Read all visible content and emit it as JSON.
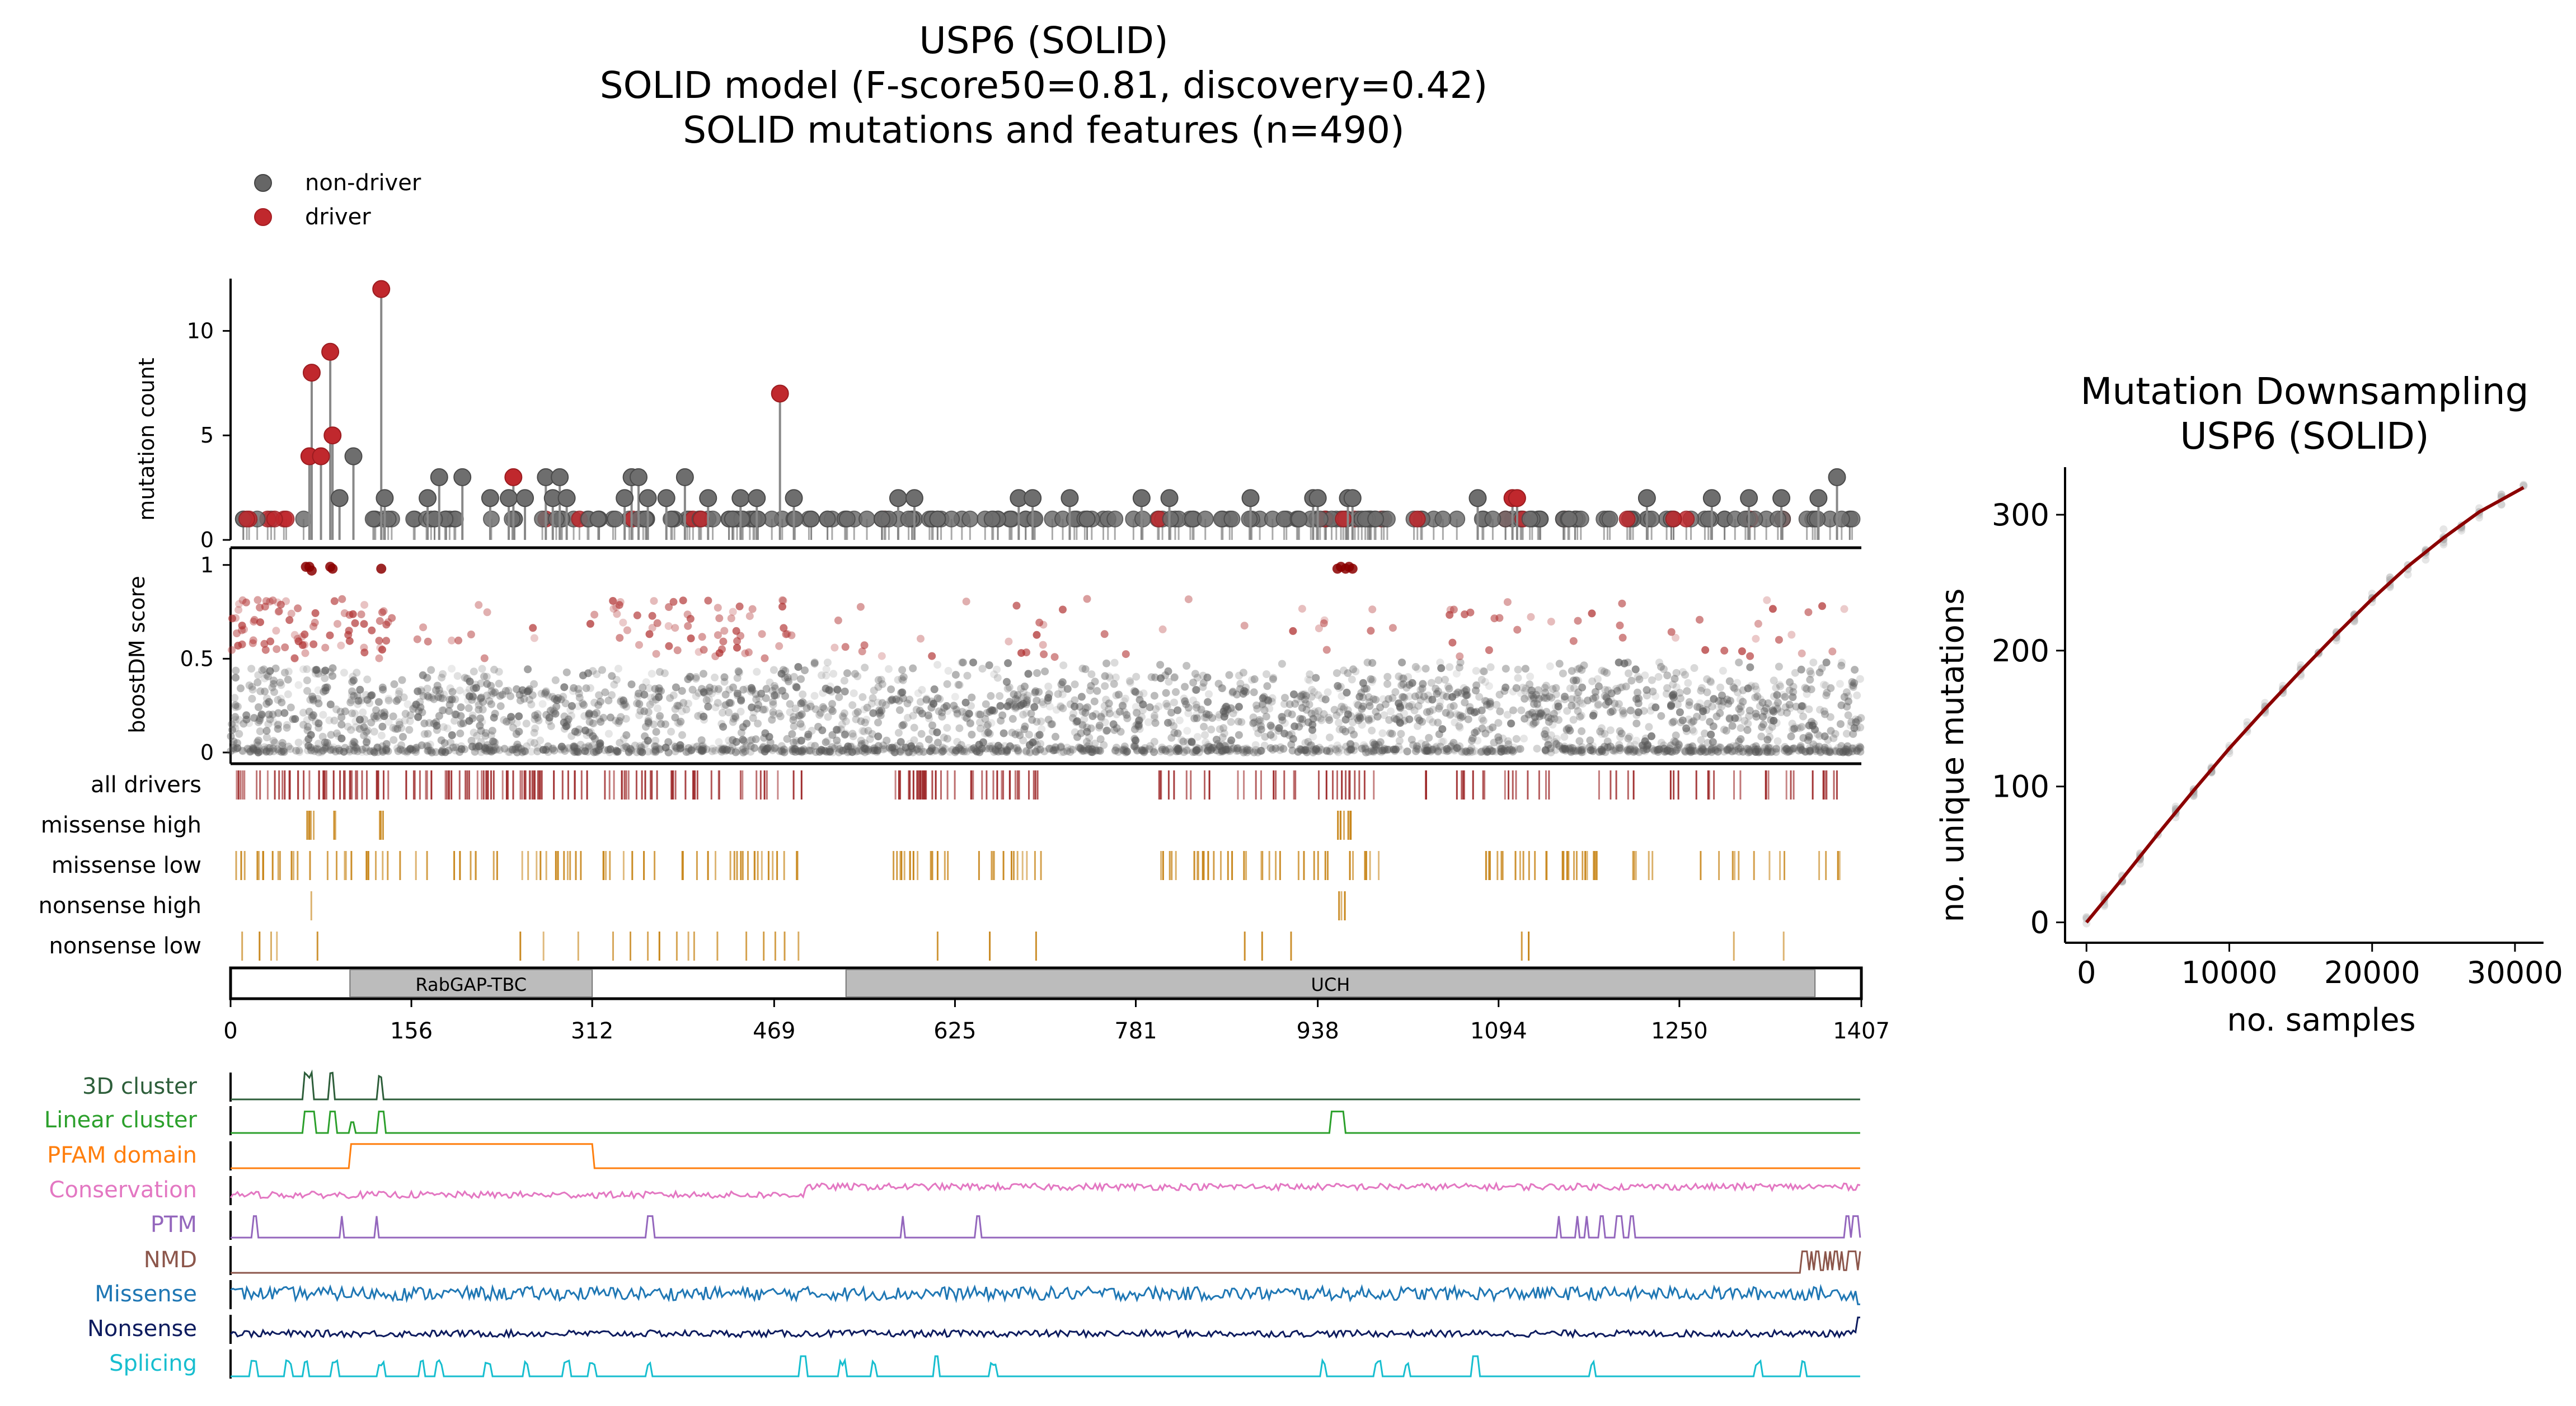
{
  "title_lines": [
    "USP6 (SOLID)",
    "SOLID model (F-score50=0.81, discovery=0.42)",
    "SOLID mutations and features (n=490)"
  ],
  "legend": [
    {
      "label": "non-driver",
      "color": "#666666"
    },
    {
      "label": "driver",
      "color": "#c0282d"
    }
  ],
  "chart_data": [
    {
      "type": "scatter",
      "name": "needle-plot",
      "ylabel": "mutation count",
      "xlim": [
        0,
        1407
      ],
      "ylim": [
        0,
        12.5
      ],
      "yticks": [
        0,
        5,
        10
      ],
      "tall_needles": [
        {
          "x": 68,
          "y": 4,
          "class": "driver"
        },
        {
          "x": 70,
          "y": 8,
          "class": "driver"
        },
        {
          "x": 78,
          "y": 4,
          "class": "driver"
        },
        {
          "x": 86,
          "y": 9,
          "class": "driver"
        },
        {
          "x": 88,
          "y": 5,
          "class": "driver"
        },
        {
          "x": 94,
          "y": 2,
          "class": "non-driver"
        },
        {
          "x": 106,
          "y": 4,
          "class": "non-driver"
        },
        {
          "x": 130,
          "y": 12,
          "class": "driver"
        },
        {
          "x": 133,
          "y": 2,
          "class": "non-driver"
        },
        {
          "x": 170,
          "y": 2,
          "class": "non-driver"
        },
        {
          "x": 180,
          "y": 3,
          "class": "non-driver"
        },
        {
          "x": 200,
          "y": 3,
          "class": "non-driver"
        },
        {
          "x": 224,
          "y": 2,
          "class": "non-driver"
        },
        {
          "x": 240,
          "y": 2,
          "class": "non-driver"
        },
        {
          "x": 244,
          "y": 3,
          "class": "driver"
        },
        {
          "x": 254,
          "y": 2,
          "class": "non-driver"
        },
        {
          "x": 272,
          "y": 3,
          "class": "non-driver"
        },
        {
          "x": 278,
          "y": 2,
          "class": "non-driver"
        },
        {
          "x": 284,
          "y": 3,
          "class": "non-driver"
        },
        {
          "x": 290,
          "y": 2,
          "class": "non-driver"
        },
        {
          "x": 340,
          "y": 2,
          "class": "non-driver"
        },
        {
          "x": 346,
          "y": 3,
          "class": "non-driver"
        },
        {
          "x": 352,
          "y": 3,
          "class": "non-driver"
        },
        {
          "x": 360,
          "y": 2,
          "class": "non-driver"
        },
        {
          "x": 376,
          "y": 2,
          "class": "non-driver"
        },
        {
          "x": 392,
          "y": 3,
          "class": "non-driver"
        },
        {
          "x": 412,
          "y": 2,
          "class": "non-driver"
        },
        {
          "x": 440,
          "y": 2,
          "class": "non-driver"
        },
        {
          "x": 454,
          "y": 2,
          "class": "non-driver"
        },
        {
          "x": 474,
          "y": 7,
          "class": "driver"
        },
        {
          "x": 486,
          "y": 2,
          "class": "non-driver"
        },
        {
          "x": 576,
          "y": 2,
          "class": "non-driver"
        },
        {
          "x": 590,
          "y": 2,
          "class": "non-driver"
        },
        {
          "x": 680,
          "y": 2,
          "class": "non-driver"
        },
        {
          "x": 692,
          "y": 2,
          "class": "non-driver"
        },
        {
          "x": 724,
          "y": 2,
          "class": "non-driver"
        },
        {
          "x": 786,
          "y": 2,
          "class": "non-driver"
        },
        {
          "x": 810,
          "y": 2,
          "class": "non-driver"
        },
        {
          "x": 880,
          "y": 2,
          "class": "non-driver"
        },
        {
          "x": 934,
          "y": 2,
          "class": "non-driver"
        },
        {
          "x": 938,
          "y": 2,
          "class": "non-driver"
        },
        {
          "x": 964,
          "y": 2,
          "class": "non-driver"
        },
        {
          "x": 968,
          "y": 2,
          "class": "non-driver"
        },
        {
          "x": 1076,
          "y": 2,
          "class": "non-driver"
        },
        {
          "x": 1106,
          "y": 2,
          "class": "driver"
        },
        {
          "x": 1110,
          "y": 2,
          "class": "driver"
        },
        {
          "x": 1222,
          "y": 2,
          "class": "non-driver"
        },
        {
          "x": 1278,
          "y": 2,
          "class": "non-driver"
        },
        {
          "x": 1310,
          "y": 2,
          "class": "non-driver"
        },
        {
          "x": 1338,
          "y": 2,
          "class": "non-driver"
        },
        {
          "x": 1370,
          "y": 2,
          "class": "non-driver"
        },
        {
          "x": 1386,
          "y": 3,
          "class": "non-driver"
        }
      ]
    },
    {
      "type": "scatter",
      "name": "boostdm-score",
      "ylabel": "boostDM score",
      "xlim": [
        0,
        1407
      ],
      "ylim": [
        -0.03,
        1.05
      ],
      "yticks": [
        0,
        0.5,
        1
      ]
    },
    {
      "type": "table",
      "name": "driver-tracks",
      "rows": [
        {
          "label": "all drivers",
          "color": "#9e2a2b"
        },
        {
          "label": "missense high",
          "color": "#c8861a"
        },
        {
          "label": "missense low",
          "color": "#c8861a"
        },
        {
          "label": "nonsense high",
          "color": "#c8861a"
        },
        {
          "label": "nonsense low",
          "color": "#c8861a"
        }
      ]
    },
    {
      "type": "bar",
      "name": "protein-domains",
      "xlim": [
        0,
        1407
      ],
      "xticks": [
        0,
        156,
        312,
        469,
        625,
        781,
        938,
        1094,
        1250,
        1407
      ],
      "domains": [
        {
          "label": "RabGAP-TBC",
          "start": 103,
          "end": 312
        },
        {
          "label": "UCH",
          "start": 531,
          "end": 1367
        }
      ]
    },
    {
      "type": "line",
      "name": "feature-tracks",
      "xlim": [
        0,
        1407
      ],
      "tracks": [
        {
          "label": "3D cluster",
          "color": "#2d5e3a"
        },
        {
          "label": "Linear cluster",
          "color": "#2ca02c"
        },
        {
          "label": "PFAM domain",
          "color": "#ff7f0e"
        },
        {
          "label": "Conservation",
          "color": "#e377c2"
        },
        {
          "label": "PTM",
          "color": "#9467bd"
        },
        {
          "label": "NMD",
          "color": "#8c564b"
        },
        {
          "label": "Missense",
          "color": "#1f77b4"
        },
        {
          "label": "Nonsense",
          "color": "#0d1b5e"
        },
        {
          "label": "Splicing",
          "color": "#17becf"
        }
      ]
    },
    {
      "type": "line",
      "name": "downsampling",
      "title": "Mutation Downsampling\nUSP6 (SOLID)",
      "xlabel": "no. samples",
      "ylabel": "no. unique mutations",
      "xlim": [
        -1500,
        32000
      ],
      "ylim": [
        -15,
        335
      ],
      "xticks": [
        0,
        10000,
        20000,
        30000
      ],
      "yticks": [
        0,
        100,
        200,
        300
      ],
      "x": [
        0,
        2500,
        5000,
        7500,
        10000,
        12500,
        15000,
        17500,
        20000,
        22500,
        25000,
        27500,
        30600
      ],
      "y": [
        0,
        32,
        65,
        97,
        128,
        157,
        185,
        212,
        238,
        262,
        283,
        302,
        320
      ],
      "color": "#8b0000"
    }
  ]
}
